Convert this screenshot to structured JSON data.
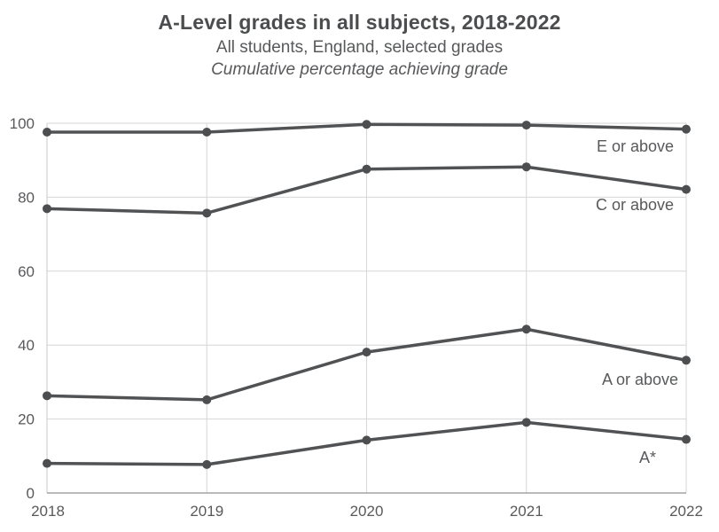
{
  "header": {
    "title": "A-Level grades in all subjects, 2018-2022",
    "subtitle": "All students, England, selected grades",
    "note": "Cumulative percentage achieving grade"
  },
  "colors": {
    "line": "#515254",
    "marker": "#4d4e50",
    "grid": "#d6d6d6",
    "left_axis": "#c9c9c9",
    "bottom_axis": "#a3a3a3",
    "tick_text": "#58595b",
    "series_label_text": "#58595b",
    "background": "#ffffff"
  },
  "chart_data": {
    "type": "line",
    "title": "A-Level grades in all subjects, 2018-2022",
    "subtitle": "All students, England, selected grades",
    "note": "Cumulative percentage achieving grade",
    "x": [
      "2018",
      "2019",
      "2020",
      "2021",
      "2022"
    ],
    "xlabel": "",
    "ylabel": "Cumulative percentage achieving grade",
    "ylim": [
      0,
      100
    ],
    "yticks": [
      0,
      20,
      40,
      60,
      80,
      100
    ],
    "grid": true,
    "legend_position": "inline-right-labels",
    "series": [
      {
        "name": "E or above",
        "values": [
          97.6,
          97.6,
          99.7,
          99.5,
          98.4
        ]
      },
      {
        "name": "C or above",
        "values": [
          76.9,
          75.7,
          87.6,
          88.2,
          82.1
        ]
      },
      {
        "name": "A or above",
        "values": [
          26.3,
          25.2,
          38.1,
          44.3,
          35.9
        ]
      },
      {
        "name": "A*",
        "values": [
          8.0,
          7.7,
          14.3,
          19.1,
          14.5
        ]
      }
    ],
    "series_label_anchors": [
      {
        "x": 760,
        "y": 171
      },
      {
        "x": 760,
        "y": 237
      },
      {
        "x": 765,
        "y": 434
      },
      {
        "x": 740,
        "y": 522
      }
    ]
  }
}
